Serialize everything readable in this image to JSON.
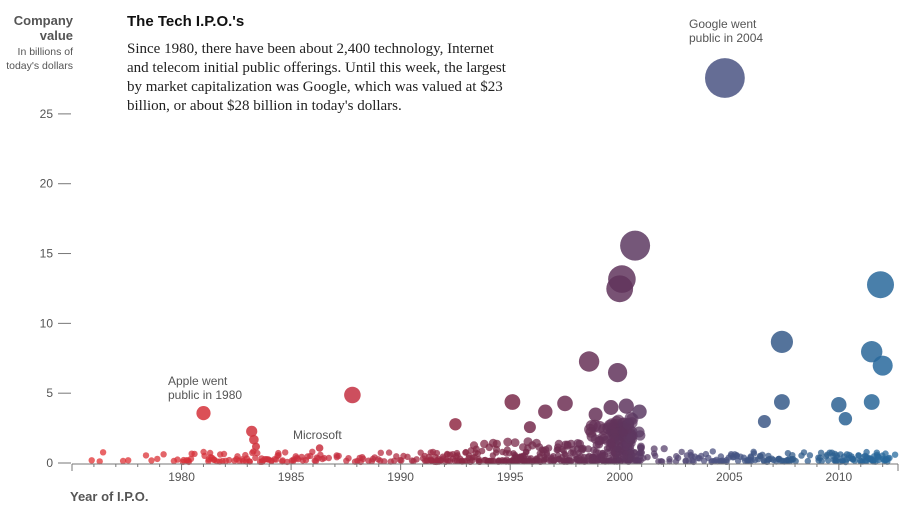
{
  "chart_data": {
    "type": "scatter",
    "title": "The Tech I.P.O.'s",
    "description": "Since 1980, there have been about 2,400 technology, Internet and telecom initial public offerings. Until this week, the largest by market capitalization was Google, which was valued at $23 billion, or about $28 billion in today's dollars.",
    "ylabel": "Company value",
    "ylabel_sub": "In billions of today's dollars",
    "xlabel": "Year of I.P.O.",
    "xlim": [
      1975,
      2012.7
    ],
    "ylim": [
      0,
      28
    ],
    "xticks": [
      1980,
      1985,
      1990,
      1995,
      2000,
      2005,
      2010
    ],
    "yticks": [
      0,
      5,
      10,
      15,
      20,
      25
    ],
    "grid": false,
    "annotations": [
      {
        "id": "google",
        "text": "Google went public in 2004",
        "x": 2004.8,
        "y": 27.5
      },
      {
        "id": "apple",
        "text": "Apple went public in 1980",
        "x": 1981,
        "y": 3.5
      },
      {
        "id": "microsoft",
        "text": "Microsoft",
        "x": 1986.3,
        "y": 1.0
      }
    ],
    "points": [
      {
        "x": 2004.8,
        "y": 27.5
      },
      {
        "x": 2000.7,
        "y": 15.5
      },
      {
        "x": 2000.1,
        "y": 13.1
      },
      {
        "x": 2000.0,
        "y": 12.4
      },
      {
        "x": 2011.9,
        "y": 12.7
      },
      {
        "x": 2007.4,
        "y": 8.6
      },
      {
        "x": 2011.5,
        "y": 7.9
      },
      {
        "x": 2012.0,
        "y": 6.9
      },
      {
        "x": 1998.6,
        "y": 7.2
      },
      {
        "x": 1999.9,
        "y": 6.4
      },
      {
        "x": 1987.8,
        "y": 4.8
      },
      {
        "x": 1981.0,
        "y": 3.5
      },
      {
        "x": 1995.1,
        "y": 4.3
      },
      {
        "x": 1997.5,
        "y": 4.2
      },
      {
        "x": 1996.6,
        "y": 3.6
      },
      {
        "x": 1998.9,
        "y": 3.4
      },
      {
        "x": 1999.6,
        "y": 3.9
      },
      {
        "x": 2000.3,
        "y": 4.0
      },
      {
        "x": 2000.9,
        "y": 3.6
      },
      {
        "x": 2007.4,
        "y": 4.3
      },
      {
        "x": 2010.0,
        "y": 4.1
      },
      {
        "x": 2010.3,
        "y": 3.1
      },
      {
        "x": 2011.5,
        "y": 4.3
      },
      {
        "x": 2006.6,
        "y": 2.9
      },
      {
        "x": 1992.5,
        "y": 2.7
      },
      {
        "x": 1995.9,
        "y": 2.5
      },
      {
        "x": 1983.2,
        "y": 2.2
      },
      {
        "x": 1983.3,
        "y": 1.6
      },
      {
        "x": 1983.4,
        "y": 1.1
      },
      {
        "x": 1986.3,
        "y": 1.0
      }
    ]
  }
}
